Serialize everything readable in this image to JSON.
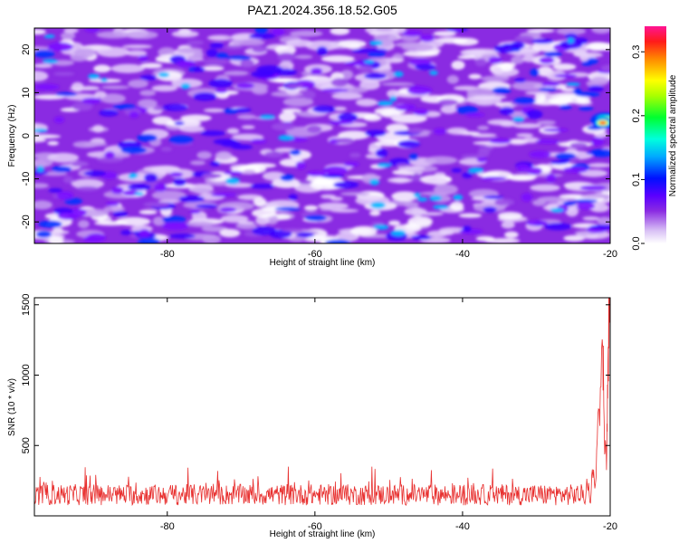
{
  "title": "PAZ1.2024.356.18.52.G05",
  "chart_data": [
    {
      "type": "heatmap",
      "xlabel": "Height of straight line (km)",
      "ylabel": "Frequency (Hz)",
      "xlim": [
        -98,
        -20
      ],
      "ylim": [
        -25,
        25
      ],
      "xticks": [
        -80,
        -60,
        -40,
        -20
      ],
      "yticks": [
        -20,
        -10,
        0,
        10,
        20
      ],
      "colorbar": {
        "label": "Normalized spectral amplitude",
        "range": [
          0.0,
          0.34
        ],
        "ticks": [
          0.0,
          0.1,
          0.2,
          0.3
        ],
        "colormap": [
          "#ffffff",
          "#c89cf0",
          "#8a2be2",
          "#6a00ff",
          "#0000ff",
          "#00bfff",
          "#00ffcc",
          "#00ff00",
          "#ffff00",
          "#ff9900",
          "#ff0000",
          "#ff1493"
        ]
      },
      "features": [
        {
          "x": -20.7,
          "y": 3.5,
          "value": 0.33,
          "note": "strong peak at right edge"
        },
        {
          "x": -21.0,
          "y": 3.0,
          "value": 0.25
        }
      ],
      "grid": false
    },
    {
      "type": "line",
      "xlabel": "Height of straight line (km)",
      "ylabel": "SNR (10 * v/v)",
      "xlim": [
        -98,
        -20
      ],
      "ylim": [
        0,
        1550
      ],
      "xticks": [
        -80,
        -60,
        -40,
        -20
      ],
      "yticks": [
        500,
        1000,
        1500
      ],
      "series": [
        {
          "color": "#e8302f",
          "baseline_mean": 150,
          "baseline_range": [
            60,
            350
          ],
          "x": [
            -98,
            -90,
            -80,
            -70,
            -60,
            -50,
            -40,
            -30,
            -23,
            -22,
            -21.5,
            -21,
            -20.8,
            -20.5,
            -20.3,
            -20.1
          ],
          "values": [
            150,
            150,
            150,
            150,
            150,
            150,
            150,
            150,
            150,
            250,
            1000,
            1130,
            700,
            400,
            1000,
            1550
          ]
        }
      ],
      "grid": false
    }
  ]
}
